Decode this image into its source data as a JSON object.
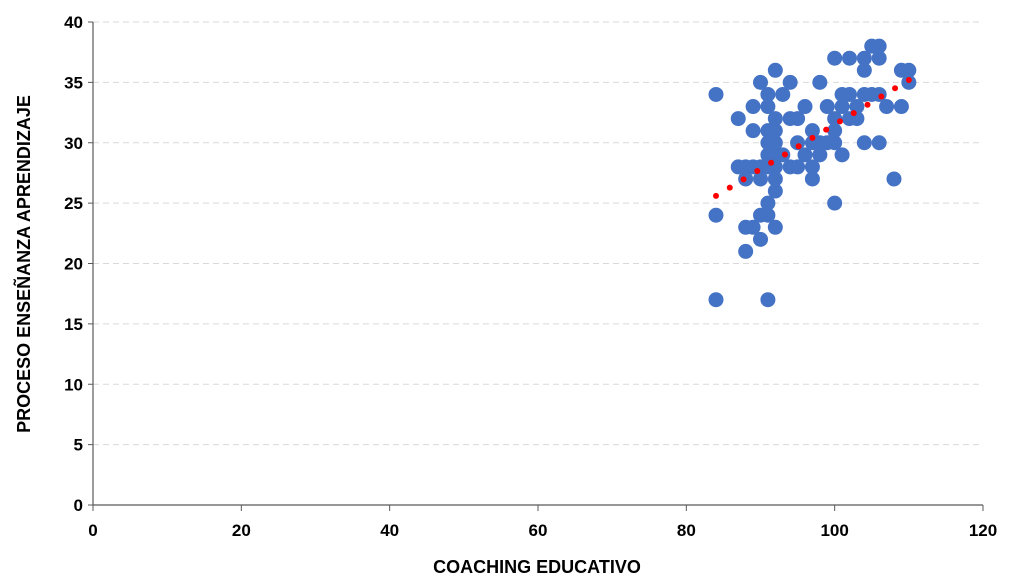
{
  "chart_data": {
    "type": "scatter",
    "xlabel": "COACHING EDUCATIVO",
    "ylabel": "PROCESO ENSEÑANZA APRENDIZAJE",
    "xlim": [
      0,
      120
    ],
    "ylim": [
      0,
      40
    ],
    "x_ticks": [
      0,
      20,
      40,
      60,
      80,
      100,
      120
    ],
    "y_ticks": [
      0,
      5,
      10,
      15,
      20,
      25,
      30,
      35,
      40
    ],
    "grid": "horizontal-dashed",
    "legend": "none",
    "point_color": "#4472C4",
    "trend_color": "#FF0000",
    "series": [
      {
        "points": [
          [
            84,
            34
          ],
          [
            84,
            24
          ],
          [
            84,
            17
          ],
          [
            87,
            32
          ],
          [
            87,
            28
          ],
          [
            88,
            28
          ],
          [
            88,
            27
          ],
          [
            88,
            23
          ],
          [
            88,
            21
          ],
          [
            89,
            33
          ],
          [
            89,
            31
          ],
          [
            89,
            28
          ],
          [
            89,
            23
          ],
          [
            90,
            35
          ],
          [
            90,
            28
          ],
          [
            90,
            27
          ],
          [
            90,
            24
          ],
          [
            90,
            22
          ],
          [
            91,
            34
          ],
          [
            91,
            33
          ],
          [
            91,
            31
          ],
          [
            91,
            30
          ],
          [
            91,
            29
          ],
          [
            91,
            28
          ],
          [
            91,
            25
          ],
          [
            91,
            24
          ],
          [
            91,
            17
          ],
          [
            92,
            36
          ],
          [
            92,
            32
          ],
          [
            92,
            31
          ],
          [
            92,
            30
          ],
          [
            92,
            29
          ],
          [
            92,
            28
          ],
          [
            92,
            27
          ],
          [
            92,
            26
          ],
          [
            92,
            23
          ],
          [
            93,
            34
          ],
          [
            93,
            29
          ],
          [
            94,
            35
          ],
          [
            94,
            32
          ],
          [
            94,
            28
          ],
          [
            95,
            32
          ],
          [
            95,
            30
          ],
          [
            95,
            28
          ],
          [
            96,
            33
          ],
          [
            96,
            29
          ],
          [
            97,
            31
          ],
          [
            97,
            30
          ],
          [
            97,
            28
          ],
          [
            97,
            27
          ],
          [
            98,
            35
          ],
          [
            98,
            30
          ],
          [
            98,
            29
          ],
          [
            99,
            33
          ],
          [
            99,
            30
          ],
          [
            100,
            37
          ],
          [
            100,
            32
          ],
          [
            100,
            31
          ],
          [
            100,
            30
          ],
          [
            100,
            25
          ],
          [
            101,
            34
          ],
          [
            101,
            33
          ],
          [
            101,
            29
          ],
          [
            102,
            37
          ],
          [
            102,
            34
          ],
          [
            102,
            32
          ],
          [
            103,
            33
          ],
          [
            103,
            32
          ],
          [
            104,
            37
          ],
          [
            104,
            36
          ],
          [
            104,
            34
          ],
          [
            104,
            30
          ],
          [
            105,
            38
          ],
          [
            105,
            34
          ],
          [
            106,
            38
          ],
          [
            106,
            37
          ],
          [
            106,
            34
          ],
          [
            106,
            30
          ],
          [
            107,
            33
          ],
          [
            108,
            27
          ],
          [
            109,
            36
          ],
          [
            109,
            33
          ],
          [
            110,
            36
          ],
          [
            110,
            35
          ]
        ]
      }
    ],
    "trendline": {
      "type": "linear",
      "x_range": [
        84,
        110
      ],
      "y_range": [
        25.6,
        35.2
      ],
      "style": "dotted"
    }
  }
}
